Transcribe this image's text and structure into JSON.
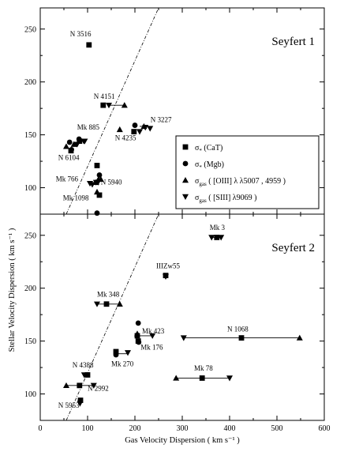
{
  "chart_data": [
    {
      "type": "scatter",
      "title": "Seyfert 1",
      "xlabel": "Gas Velocity Dispersion ( km s⁻¹ )",
      "ylabel": "Stellar Velocity Dispersion ( km s⁻¹ )",
      "xlim": [
        0,
        600
      ],
      "ylim": [
        75,
        270
      ],
      "xticks": [
        "0",
        "100",
        "200",
        "300",
        "400",
        "500",
        "600"
      ],
      "yticks": [
        "100",
        "150",
        "200",
        "250"
      ],
      "reference_line": {
        "x": [
          55,
          250
        ],
        "y": [
          75,
          270
        ]
      },
      "legend_position": "lower-right",
      "legend": [
        {
          "marker": "square",
          "main": "σ",
          "sub": "*",
          "rest": " (CaT)"
        },
        {
          "marker": "circle",
          "main": "σ",
          "sub": "*",
          "rest": " (Mgb)"
        },
        {
          "marker": "triangle-up",
          "main": "σ",
          "sub": "gas",
          "rest": " ( [OIII] λ λ5007 , 4959 )"
        },
        {
          "marker": "triangle-down",
          "main": "σ",
          "sub": "gas",
          "rest": " ( [SIII] λ9069 )"
        }
      ],
      "series": [
        {
          "marker": "square",
          "points": [
            [
              103,
              235
            ],
            [
              133,
              178
            ],
            [
              120,
              121
            ],
            [
              198,
              153
            ],
            [
              125,
              93
            ],
            [
              65,
              135
            ],
            [
              83,
              144
            ]
          ]
        },
        {
          "marker": "circle",
          "points": [
            [
              120,
              76
            ],
            [
              125,
              112
            ],
            [
              200,
              159
            ],
            [
              82,
              146
            ],
            [
              62,
              143
            ],
            [
              66,
              136
            ]
          ]
        },
        {
          "marker": "triangle-up",
          "points": [
            [
              120,
              96
            ],
            [
              123,
              108
            ],
            [
              128,
              108
            ],
            [
              178,
              178
            ],
            [
              168,
              155
            ],
            [
              219,
              158
            ],
            [
              55,
              139
            ],
            [
              71,
              141
            ],
            [
              118,
              105
            ]
          ]
        },
        {
          "marker": "triangle-down",
          "points": [
            [
              118,
              105
            ],
            [
              110,
              103
            ],
            [
              122,
              105
            ],
            [
              145,
              178
            ],
            [
              210,
              153
            ],
            [
              222,
              157
            ],
            [
              232,
              156
            ],
            [
              94,
              144
            ],
            [
              92,
              144
            ],
            [
              78,
              141
            ],
            [
              105,
              104
            ]
          ]
        }
      ],
      "errorbars": [
        {
          "y": 178,
          "x": [
            145,
            178
          ]
        },
        {
          "y": 158,
          "x": [
            210,
            232
          ]
        },
        {
          "y": 144,
          "x": [
            78,
            94
          ]
        }
      ],
      "annotations": [
        {
          "text": "N 3516",
          "x": 63,
          "y": 243
        },
        {
          "text": "N 4151",
          "x": 113,
          "y": 184
        },
        {
          "text": "N 3227",
          "x": 233,
          "y": 162
        },
        {
          "text": "N 4235",
          "x": 158,
          "y": 145
        },
        {
          "text": "Mk 885",
          "x": 78,
          "y": 155
        },
        {
          "text": "N 6104",
          "x": 38,
          "y": 126
        },
        {
          "text": "Mk 766",
          "x": 33,
          "y": 106
        },
        {
          "text": "N 5940",
          "x": 128,
          "y": 103
        },
        {
          "text": "Mk 1098",
          "x": 48,
          "y": 88
        }
      ]
    },
    {
      "type": "scatter",
      "title": "Seyfert 2",
      "xlabel": "Gas Velocity Dispersion ( km s⁻¹ )",
      "ylabel": "Stellar Velocity Dispersion ( km s⁻¹ )",
      "xlim": [
        0,
        600
      ],
      "ylim": [
        75,
        270
      ],
      "xticks": [
        "0",
        "100",
        "200",
        "300",
        "400",
        "500",
        "600"
      ],
      "yticks": [
        "100",
        "150",
        "200",
        "250"
      ],
      "reference_line": {
        "x": [
          55,
          250
        ],
        "y": [
          75,
          270
        ]
      },
      "series": [
        {
          "marker": "square",
          "points": [
            [
              373,
              248
            ],
            [
              265,
              212
            ],
            [
              140,
              185
            ],
            [
              205,
              155
            ],
            [
              207,
              150
            ],
            [
              160,
              140
            ],
            [
              425,
              153
            ],
            [
              342,
              115
            ],
            [
              83,
              108
            ],
            [
              100,
              118
            ],
            [
              85,
              94
            ]
          ]
        },
        {
          "marker": "circle",
          "points": [
            [
              207,
              167
            ],
            [
              160,
              137
            ],
            [
              208,
              149
            ]
          ]
        },
        {
          "marker": "triangle-up",
          "points": [
            [
              168,
              185
            ],
            [
              205,
              157
            ],
            [
              548,
              153
            ],
            [
              287,
              115
            ],
            [
              55,
              108
            ]
          ]
        },
        {
          "marker": "triangle-down",
          "points": [
            [
              362,
              248
            ],
            [
              382,
              248
            ],
            [
              265,
              211
            ],
            [
              120,
              185
            ],
            [
              237,
              155
            ],
            [
              185,
              139
            ],
            [
              303,
              153
            ],
            [
              400,
              115
            ],
            [
              93,
              118
            ],
            [
              113,
              108
            ],
            [
              84,
              91
            ]
          ]
        }
      ],
      "errorbars": [
        {
          "y": 185,
          "x": [
            120,
            168
          ]
        },
        {
          "y": 155,
          "x": [
            205,
            237
          ]
        },
        {
          "y": 138,
          "x": [
            160,
            185
          ]
        },
        {
          "y": 153,
          "x": [
            303,
            548
          ]
        },
        {
          "y": 115,
          "x": [
            287,
            400
          ]
        },
        {
          "y": 108,
          "x": [
            55,
            113
          ]
        },
        {
          "y": 118,
          "x": [
            93,
            100
          ]
        },
        {
          "y": 248,
          "x": [
            362,
            382
          ]
        }
      ],
      "annotations": [
        {
          "text": "Mk 3",
          "x": 358,
          "y": 255
        },
        {
          "text": "IIIZw55",
          "x": 245,
          "y": 219
        },
        {
          "text": "Mk 348",
          "x": 120,
          "y": 192
        },
        {
          "text": "Mk 423",
          "x": 215,
          "y": 157
        },
        {
          "text": "N 1068",
          "x": 395,
          "y": 159
        },
        {
          "text": "Mk 176",
          "x": 212,
          "y": 142
        },
        {
          "text": "Mk 270",
          "x": 150,
          "y": 126
        },
        {
          "text": "Mk 78",
          "x": 325,
          "y": 122
        },
        {
          "text": "N 4388",
          "x": 68,
          "y": 125
        },
        {
          "text": "N 2992",
          "x": 100,
          "y": 103
        },
        {
          "text": "N 5953",
          "x": 38,
          "y": 87
        }
      ]
    }
  ]
}
